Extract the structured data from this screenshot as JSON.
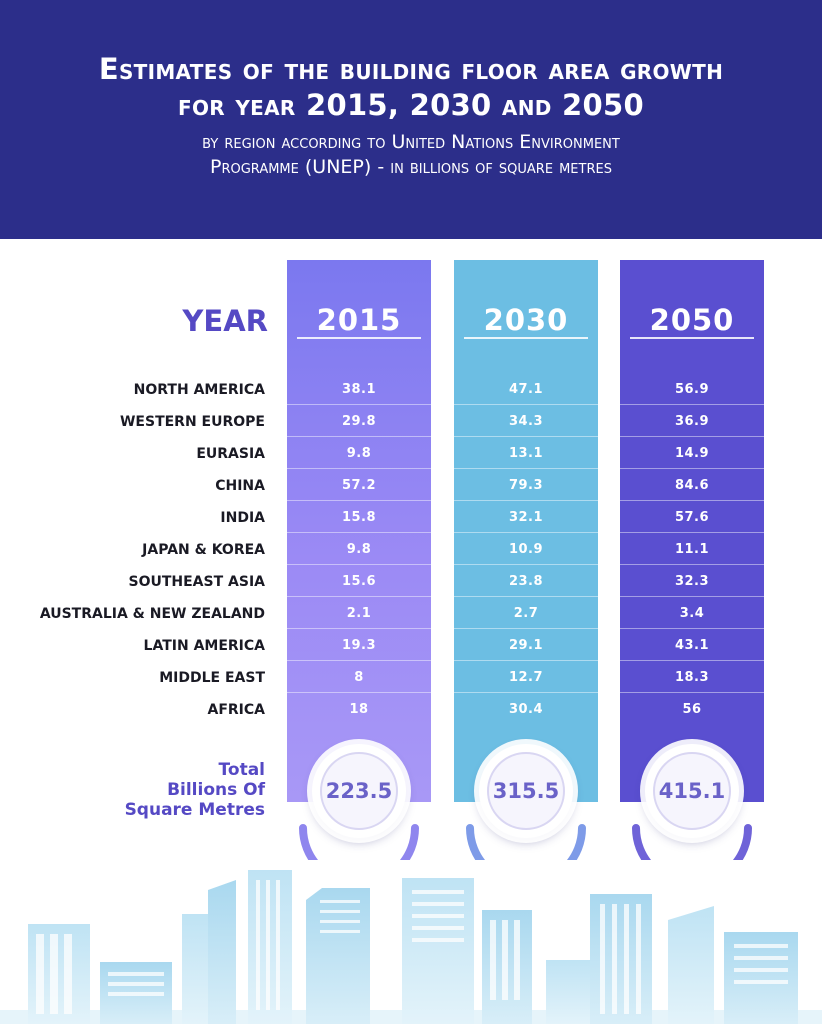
{
  "header": {
    "title_line1": "Estimates of the building floor area growth",
    "title_line2": "for year 2015, 2030 and 2050",
    "subtitle_line1": "by region according to United Nations Environment",
    "subtitle_line2": "Programme (UNEP) - in billions of square metres"
  },
  "year_label": "YEAR",
  "total_label": [
    "Total",
    "Billions Of",
    "Square Metres"
  ],
  "colors": {
    "header": "#2c2e8a",
    "col_2015": "#8e85f2",
    "col_2030": "#6cbee3",
    "col_2050": "#5a4fd0",
    "accent_text": "#5549c4"
  },
  "chart_data": {
    "type": "table",
    "columns": [
      "2015",
      "2030",
      "2050"
    ],
    "rows": [
      {
        "region": "NORTH AMERICA",
        "values": [
          "38.1",
          "47.1",
          "56.9"
        ]
      },
      {
        "region": "WESTERN EUROPE",
        "values": [
          "29.8",
          "34.3",
          "36.9"
        ]
      },
      {
        "region": "EURASIA",
        "values": [
          "9.8",
          "13.1",
          "14.9"
        ]
      },
      {
        "region": "CHINA",
        "values": [
          "57.2",
          "79.3",
          "84.6"
        ]
      },
      {
        "region": "INDIA",
        "values": [
          "15.8",
          "32.1",
          "57.6"
        ]
      },
      {
        "region": "JAPAN & KOREA",
        "values": [
          "9.8",
          "10.9",
          "11.1"
        ]
      },
      {
        "region": "SOUTHEAST ASIA",
        "values": [
          "15.6",
          "23.8",
          "32.3"
        ]
      },
      {
        "region": "AUSTRALIA & NEW ZEALAND",
        "values": [
          "2.1",
          "2.7",
          "3.4"
        ]
      },
      {
        "region": "LATIN AMERICA",
        "values": [
          "19.3",
          "29.1",
          "43.1"
        ]
      },
      {
        "region": "MIDDLE EAST",
        "values": [
          "8",
          "12.7",
          "18.3"
        ]
      },
      {
        "region": "AFRICA",
        "values": [
          "18",
          "30.4",
          "56"
        ]
      }
    ],
    "totals": [
      "223.5",
      "315.5",
      "415.1"
    ]
  }
}
